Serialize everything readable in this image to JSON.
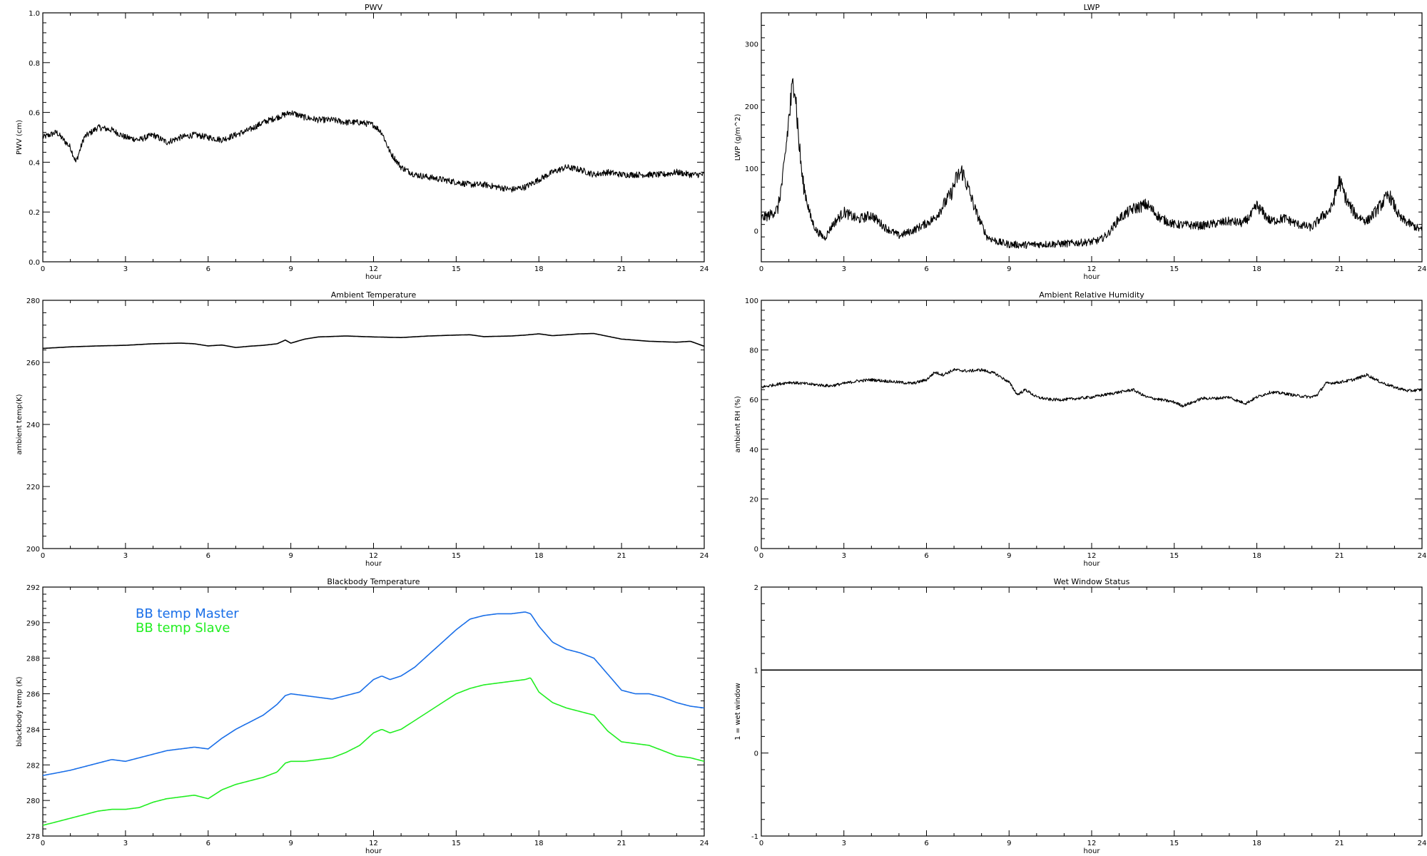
{
  "chart_data": [
    {
      "type": "line",
      "title": "PWV",
      "xlabel": "hour",
      "ylabel": "PWV (cm)",
      "xlim": [
        0,
        24
      ],
      "ylim": [
        0.0,
        1.0
      ],
      "xticks": [
        0,
        3,
        6,
        9,
        12,
        15,
        18,
        21,
        24
      ],
      "yticks": [
        0.0,
        0.2,
        0.4,
        0.6,
        0.8,
        1.0
      ],
      "ytick_labels": [
        "0.0",
        "0.2",
        "0.4",
        "0.6",
        "0.8",
        "1.0"
      ],
      "grid": false,
      "series": [
        {
          "color": "#000000",
          "style": "noisy",
          "x": [
            0,
            0.5,
            1.0,
            1.2,
            1.5,
            2.0,
            2.5,
            3.0,
            3.5,
            4.0,
            4.5,
            5.0,
            5.5,
            6.0,
            6.5,
            7.0,
            7.5,
            8.0,
            8.5,
            9.0,
            9.5,
            10.0,
            10.5,
            11.0,
            11.5,
            12.0,
            12.3,
            12.6,
            13.0,
            13.5,
            14.0,
            14.5,
            15.0,
            15.5,
            16.0,
            16.5,
            17.0,
            17.5,
            18.0,
            18.5,
            19.0,
            19.5,
            20.0,
            20.5,
            21.0,
            21.5,
            22.0,
            22.5,
            23.0,
            23.5,
            24.0
          ],
          "y": [
            0.5,
            0.52,
            0.46,
            0.4,
            0.5,
            0.54,
            0.53,
            0.5,
            0.49,
            0.51,
            0.48,
            0.5,
            0.51,
            0.5,
            0.49,
            0.51,
            0.53,
            0.56,
            0.58,
            0.6,
            0.58,
            0.57,
            0.57,
            0.56,
            0.56,
            0.55,
            0.52,
            0.44,
            0.38,
            0.35,
            0.34,
            0.33,
            0.32,
            0.31,
            0.31,
            0.3,
            0.29,
            0.3,
            0.33,
            0.36,
            0.38,
            0.37,
            0.35,
            0.36,
            0.35,
            0.35,
            0.35,
            0.35,
            0.36,
            0.35,
            0.35
          ]
        }
      ]
    },
    {
      "type": "scatter",
      "title": "LWP",
      "xlabel": "hour",
      "ylabel": "LWP (g/m^2)",
      "xlim": [
        0,
        24
      ],
      "ylim": [
        -50,
        350
      ],
      "xticks": [
        0,
        3,
        6,
        9,
        12,
        15,
        18,
        21,
        24
      ],
      "yticks": [
        0,
        100,
        200,
        300
      ],
      "ytick_labels": [
        "0",
        "100",
        "200",
        "300"
      ],
      "grid": false,
      "series": [
        {
          "color": "#000000",
          "style": "spiky",
          "x": [
            0,
            0.3,
            0.6,
            0.8,
            1.0,
            1.2,
            1.35,
            1.5,
            1.8,
            2.0,
            2.3,
            2.6,
            3.0,
            3.5,
            4.0,
            4.5,
            5.0,
            5.5,
            6.0,
            6.3,
            6.6,
            6.9,
            7.1,
            7.3,
            7.5,
            7.8,
            8.2,
            8.6,
            9.0,
            9.5,
            10.0,
            11.0,
            12.0,
            12.3,
            12.6,
            13.0,
            13.5,
            14.0,
            14.5,
            15.0,
            16.0,
            17.0,
            17.5,
            17.8,
            18.0,
            18.5,
            19.0,
            19.5,
            20.0,
            20.3,
            20.7,
            21.0,
            21.3,
            21.6,
            22.0,
            22.3,
            22.8,
            23.2,
            23.6,
            24.0
          ],
          "y": [
            20,
            25,
            35,
            90,
            180,
            250,
            150,
            80,
            20,
            0,
            -12,
            10,
            30,
            18,
            25,
            5,
            -8,
            0,
            12,
            20,
            40,
            60,
            85,
            95,
            70,
            30,
            -10,
            -18,
            -22,
            -23,
            -22,
            -21,
            -18,
            -15,
            -5,
            20,
            35,
            42,
            20,
            10,
            8,
            15,
            12,
            25,
            40,
            15,
            20,
            10,
            5,
            20,
            35,
            80,
            45,
            25,
            15,
            30,
            58,
            20,
            10,
            0
          ]
        }
      ]
    },
    {
      "type": "line",
      "title": "Ambient Temperature",
      "xlabel": "hour",
      "ylabel": "ambient temp(K)",
      "xlim": [
        0,
        24
      ],
      "ylim": [
        200,
        280
      ],
      "xticks": [
        0,
        3,
        6,
        9,
        12,
        15,
        18,
        21,
        24
      ],
      "yticks": [
        200,
        220,
        240,
        260,
        280
      ],
      "ytick_labels": [
        "200",
        "220",
        "240",
        "260",
        "280"
      ],
      "grid": false,
      "series": [
        {
          "color": "#000000",
          "style": "smooth",
          "x": [
            0,
            1,
            2,
            3,
            4,
            5,
            5.5,
            6.0,
            6.5,
            7.0,
            7.5,
            8.0,
            8.5,
            8.8,
            9.0,
            9.5,
            10.0,
            11.0,
            12.0,
            13.0,
            14.0,
            15.0,
            15.5,
            16.0,
            17.0,
            17.5,
            18.0,
            18.5,
            19.0,
            19.5,
            20.0,
            21.0,
            22.0,
            23.0,
            23.5,
            24.0
          ],
          "y": [
            264.5,
            265,
            265.3,
            265.5,
            266,
            266.2,
            266.0,
            265.3,
            265.6,
            264.8,
            265.2,
            265.5,
            266,
            267.2,
            266.2,
            267.5,
            268.2,
            268.5,
            268.2,
            268.0,
            268.5,
            268.8,
            268.9,
            268.3,
            268.5,
            268.8,
            269.2,
            268.6,
            268.9,
            269.2,
            269.3,
            267.5,
            266.8,
            266.5,
            266.8,
            265.2
          ]
        }
      ]
    },
    {
      "type": "line",
      "title": "Ambient Relative Humidity",
      "xlabel": "hour",
      "ylabel": "ambient RH (%)",
      "xlim": [
        0,
        24
      ],
      "ylim": [
        0,
        100
      ],
      "xticks": [
        0,
        3,
        6,
        9,
        12,
        15,
        18,
        21,
        24
      ],
      "yticks": [
        0,
        20,
        40,
        60,
        80,
        100
      ],
      "ytick_labels": [
        "0",
        "20",
        "40",
        "60",
        "80",
        "100"
      ],
      "grid": false,
      "series": [
        {
          "color": "#000000",
          "style": "jitter",
          "x": [
            0,
            0.5,
            1.0,
            1.5,
            2.0,
            2.5,
            3.0,
            3.5,
            4.0,
            4.5,
            5.0,
            5.5,
            6.0,
            6.3,
            6.6,
            7.0,
            7.5,
            8.0,
            8.5,
            9.0,
            9.3,
            9.6,
            10.0,
            10.5,
            11.0,
            11.5,
            12.0,
            12.5,
            13.0,
            13.5,
            14.0,
            14.5,
            15.0,
            15.3,
            15.7,
            16.0,
            16.5,
            17.0,
            17.3,
            17.6,
            18.0,
            18.5,
            19.0,
            19.5,
            20.0,
            20.2,
            20.5,
            21.0,
            21.5,
            22.0,
            22.5,
            23.0,
            23.5,
            24.0
          ],
          "y": [
            65,
            66,
            67,
            66.5,
            66,
            65.5,
            66.5,
            67.5,
            68,
            67.5,
            67,
            66.5,
            68,
            71,
            70,
            72,
            71.5,
            72,
            70.5,
            67,
            62,
            64,
            61,
            60,
            60,
            60.5,
            61,
            62,
            63,
            64,
            61,
            60,
            59,
            57.5,
            59,
            60.5,
            60.5,
            61,
            59.5,
            58.5,
            61,
            63,
            62.5,
            61.5,
            61,
            62,
            66.5,
            67,
            68,
            70,
            67,
            65,
            63.5,
            64
          ]
        }
      ]
    },
    {
      "type": "line",
      "title": "Blackbody Temperature",
      "xlabel": "hour",
      "ylabel": "blackbody temp (K)",
      "xlim": [
        0,
        24
      ],
      "ylim": [
        278,
        292
      ],
      "xticks": [
        0,
        3,
        6,
        9,
        12,
        15,
        18,
        21,
        24
      ],
      "yticks": [
        278,
        280,
        282,
        284,
        286,
        288,
        290,
        292
      ],
      "ytick_labels": [
        "278",
        "280",
        "282",
        "284",
        "286",
        "288",
        "290",
        "292"
      ],
      "grid": false,
      "legend_placement": "top-left",
      "series": [
        {
          "name": "BB temp Master",
          "color": "#1a6fe8",
          "style": "smooth",
          "x": [
            0,
            1,
            2,
            2.5,
            3.0,
            3.5,
            4.0,
            4.5,
            5.0,
            5.5,
            6.0,
            6.5,
            7.0,
            7.5,
            8.0,
            8.5,
            8.8,
            9.0,
            9.5,
            10.0,
            10.5,
            11.0,
            11.5,
            12.0,
            12.3,
            12.6,
            13.0,
            13.5,
            14.0,
            14.5,
            15.0,
            15.5,
            16.0,
            16.5,
            17.0,
            17.5,
            17.7,
            18.0,
            18.5,
            19.0,
            19.5,
            20.0,
            20.5,
            21.0,
            21.5,
            22.0,
            22.5,
            23.0,
            23.5,
            24.0
          ],
          "y": [
            281.4,
            281.7,
            282.1,
            282.3,
            282.2,
            282.4,
            282.6,
            282.8,
            282.9,
            283.0,
            282.9,
            283.5,
            284.0,
            284.4,
            284.8,
            285.4,
            285.9,
            286.0,
            285.9,
            285.8,
            285.7,
            285.9,
            286.1,
            286.8,
            287.0,
            286.8,
            287.0,
            287.5,
            288.2,
            288.9,
            289.6,
            290.2,
            290.4,
            290.5,
            290.5,
            290.6,
            290.5,
            289.8,
            288.9,
            288.5,
            288.3,
            288.0,
            287.1,
            286.2,
            286.0,
            286.0,
            285.8,
            285.5,
            285.3,
            285.2
          ]
        },
        {
          "name": "BB temp Slave",
          "color": "#22ee22",
          "style": "smooth",
          "x": [
            0,
            1,
            2,
            2.5,
            3.0,
            3.5,
            4.0,
            4.5,
            5.0,
            5.5,
            6.0,
            6.5,
            7.0,
            7.5,
            8.0,
            8.5,
            8.8,
            9.0,
            9.5,
            10.0,
            10.5,
            11.0,
            11.5,
            12.0,
            12.3,
            12.6,
            13.0,
            13.5,
            14.0,
            14.5,
            15.0,
            15.5,
            16.0,
            16.5,
            17.0,
            17.5,
            17.7,
            18.0,
            18.5,
            19.0,
            19.5,
            20.0,
            20.5,
            21.0,
            21.5,
            22.0,
            22.5,
            23.0,
            23.5,
            24.0
          ],
          "y": [
            278.6,
            279.0,
            279.4,
            279.5,
            279.5,
            279.6,
            279.9,
            280.1,
            280.2,
            280.3,
            280.1,
            280.6,
            280.9,
            281.1,
            281.3,
            281.6,
            282.1,
            282.2,
            282.2,
            282.3,
            282.4,
            282.7,
            283.1,
            283.8,
            284.0,
            283.8,
            284.0,
            284.5,
            285.0,
            285.5,
            286.0,
            286.3,
            286.5,
            286.6,
            286.7,
            286.8,
            286.9,
            286.1,
            285.5,
            285.2,
            285.0,
            284.8,
            283.9,
            283.3,
            283.2,
            283.1,
            282.8,
            282.5,
            282.4,
            282.2
          ]
        }
      ]
    },
    {
      "type": "line",
      "title": "Wet Window Status",
      "xlabel": "hour",
      "ylabel": "1 = wet window",
      "xlim": [
        0,
        24
      ],
      "ylim": [
        -1,
        2
      ],
      "xticks": [
        0,
        3,
        6,
        9,
        12,
        15,
        18,
        21,
        24
      ],
      "yticks": [
        -1,
        0,
        1,
        2
      ],
      "ytick_labels": [
        "-1",
        "0",
        "1",
        "2"
      ],
      "grid": false,
      "series": [
        {
          "color": "#000000",
          "style": "smooth",
          "x": [
            0,
            24
          ],
          "y": [
            1,
            1
          ]
        }
      ]
    }
  ]
}
